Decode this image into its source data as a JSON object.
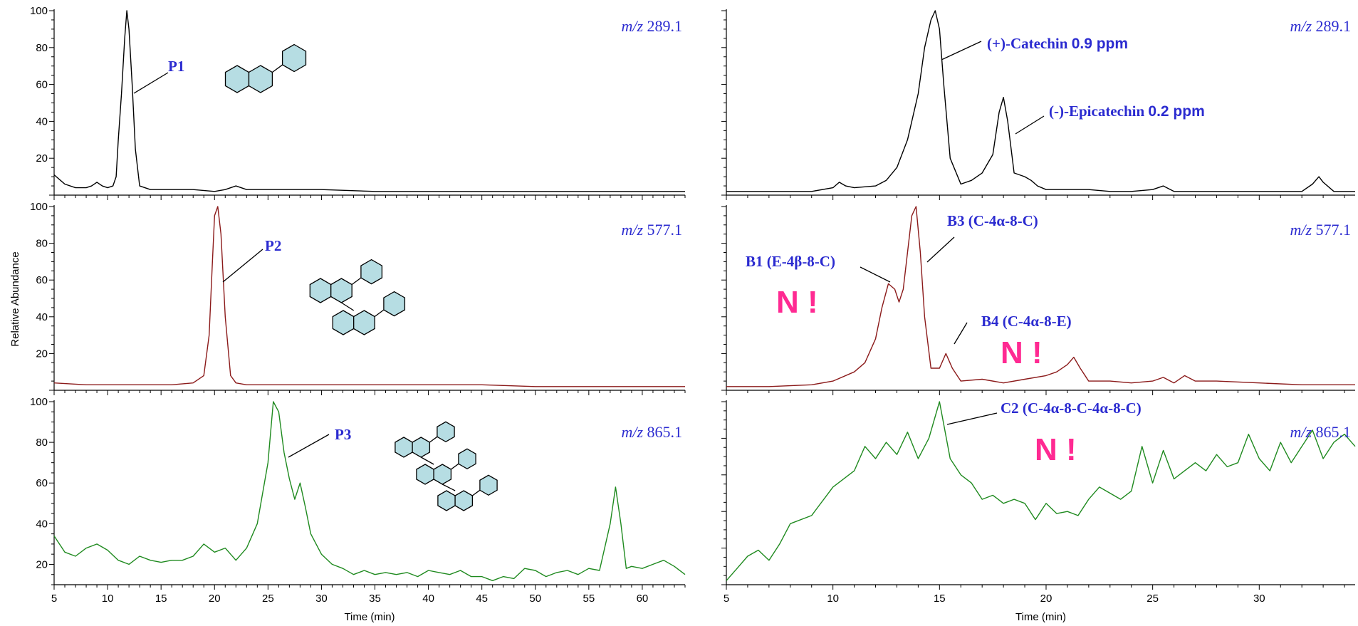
{
  "y_axis_title": "Relative Abundance",
  "colors": {
    "black_trace": "#000000",
    "red_trace": "#8b1a1a",
    "green_trace": "#1f8a1f",
    "label_blue": "#2b2bd0",
    "n_pink": "#ff2a92",
    "hex_fill": "#b6dde3"
  },
  "chart_data": [
    {
      "type": "line",
      "id": "left-289",
      "x_label": "",
      "xlim": [
        5,
        64
      ],
      "ylim": [
        0,
        100
      ],
      "y_ticks": [
        20,
        40,
        60,
        80,
        100
      ],
      "x_ticks": [],
      "mz_prefix": "m/z",
      "mz_value": "289.1",
      "color": "#000000",
      "series": [
        {
          "x": [
            5,
            6,
            7,
            8,
            8.5,
            9,
            9.5,
            10,
            10.5,
            10.8,
            11,
            11.3,
            11.6,
            11.8,
            12,
            12.3,
            12.6,
            13,
            14,
            16,
            18,
            20,
            21,
            22,
            23,
            25,
            30,
            35,
            40,
            45,
            50,
            55,
            60,
            64
          ],
          "y": [
            11,
            6,
            4,
            4,
            5,
            7,
            5,
            4,
            5,
            10,
            30,
            55,
            85,
            100,
            90,
            60,
            25,
            5,
            3,
            3,
            3,
            2,
            3,
            5,
            3,
            3,
            3,
            2,
            2,
            2,
            2,
            2,
            2,
            2
          ]
        }
      ],
      "annotations": [
        {
          "text": "P1",
          "x": 16,
          "y": 72
        }
      ]
    },
    {
      "type": "line",
      "id": "left-577",
      "x_label": "",
      "xlim": [
        5,
        64
      ],
      "ylim": [
        0,
        100
      ],
      "y_ticks": [
        20,
        40,
        60,
        80,
        100
      ],
      "x_ticks": [],
      "mz_prefix": "m/z",
      "mz_value": "577.1",
      "color": "#8b1a1a",
      "series": [
        {
          "x": [
            5,
            8,
            12,
            16,
            18,
            19,
            19.5,
            19.8,
            20,
            20.3,
            20.6,
            21,
            21.5,
            22,
            23,
            25,
            30,
            35,
            40,
            45,
            50,
            55,
            60,
            64
          ],
          "y": [
            4,
            3,
            3,
            3,
            4,
            8,
            30,
            70,
            95,
            100,
            85,
            40,
            8,
            4,
            3,
            3,
            3,
            3,
            3,
            3,
            2,
            2,
            2,
            2
          ]
        }
      ],
      "annotations": [
        {
          "text": "P2",
          "x": 23,
          "y": 73
        }
      ]
    },
    {
      "type": "line",
      "id": "left-865",
      "x_label": "Time (min)",
      "xlim": [
        5,
        64
      ],
      "ylim": [
        10,
        100
      ],
      "y_ticks": [
        20,
        40,
        60,
        80,
        100
      ],
      "x_ticks": [
        5,
        10,
        15,
        20,
        25,
        30,
        35,
        40,
        45,
        50,
        55,
        60
      ],
      "mz_prefix": "m/z",
      "mz_value": "865.1",
      "color": "#1f8a1f",
      "series": [
        {
          "x": [
            5,
            6,
            7,
            8,
            9,
            10,
            11,
            12,
            13,
            14,
            15,
            16,
            17,
            18,
            19,
            20,
            21,
            22,
            23,
            24,
            25,
            25.5,
            26,
            26.5,
            27,
            27.5,
            28,
            28.5,
            29,
            30,
            31,
            32,
            33,
            34,
            35,
            36,
            37,
            38,
            39,
            40,
            41,
            42,
            43,
            44,
            45,
            46,
            47,
            48,
            49,
            50,
            51,
            52,
            53,
            54,
            55,
            56,
            57,
            57.5,
            58,
            58.5,
            59,
            60,
            61,
            62,
            63,
            64
          ],
          "y": [
            34,
            26,
            24,
            28,
            30,
            27,
            22,
            20,
            24,
            22,
            21,
            22,
            22,
            24,
            30,
            26,
            28,
            22,
            28,
            40,
            70,
            100,
            95,
            75,
            62,
            52,
            60,
            48,
            35,
            25,
            20,
            18,
            15,
            17,
            15,
            16,
            15,
            16,
            14,
            17,
            16,
            15,
            17,
            14,
            14,
            12,
            14,
            13,
            18,
            17,
            14,
            16,
            17,
            15,
            18,
            17,
            40,
            58,
            40,
            18,
            19,
            18,
            20,
            22,
            19,
            15
          ]
        }
      ],
      "annotations": [
        {
          "text": "P3",
          "x": 31,
          "y": 88
        }
      ]
    },
    {
      "type": "line",
      "id": "right-289",
      "x_label": "",
      "xlim": [
        5,
        34.5
      ],
      "ylim": [
        0,
        100
      ],
      "y_ticks": [],
      "x_ticks": [],
      "mz_prefix": "m/z",
      "mz_value": "289.1",
      "color": "#000000",
      "series": [
        {
          "x": [
            5,
            6,
            7,
            8,
            9,
            10,
            10.3,
            10.6,
            11,
            12,
            12.5,
            13,
            13.5,
            14,
            14.3,
            14.6,
            14.8,
            15,
            15.2,
            15.5,
            16,
            16.5,
            17,
            17.5,
            17.8,
            18,
            18.2,
            18.5,
            19,
            19.3,
            19.6,
            20,
            21,
            22,
            23,
            24,
            25,
            25.5,
            26,
            27,
            28,
            29,
            30,
            31,
            32,
            32.5,
            32.8,
            33,
            33.5,
            34,
            34.5
          ],
          "y": [
            2,
            2,
            2,
            2,
            2,
            4,
            7,
            5,
            4,
            5,
            8,
            15,
            30,
            55,
            80,
            95,
            100,
            90,
            60,
            20,
            6,
            8,
            12,
            22,
            45,
            53,
            40,
            12,
            10,
            8,
            5,
            3,
            3,
            3,
            2,
            2,
            3,
            5,
            2,
            2,
            2,
            2,
            2,
            2,
            2,
            6,
            10,
            7,
            2,
            2,
            2
          ]
        }
      ],
      "annotations": [
        {
          "text": "(+)-Catechin",
          "ppm": "0.9 ppm",
          "x": 17.5,
          "y": 80
        },
        {
          "text": "(-)-Epicatechin",
          "ppm": "0.2 ppm",
          "x": 20,
          "y": 45
        }
      ]
    },
    {
      "type": "line",
      "id": "right-577",
      "x_label": "",
      "xlim": [
        5,
        34.5
      ],
      "ylim": [
        0,
        100
      ],
      "y_ticks": [],
      "x_ticks": [],
      "mz_prefix": "m/z",
      "mz_value": "577.1",
      "color": "#8b1a1a",
      "series": [
        {
          "x": [
            5,
            7,
            9,
            10,
            11,
            11.5,
            12,
            12.3,
            12.6,
            12.9,
            13.1,
            13.3,
            13.5,
            13.7,
            13.9,
            14.1,
            14.3,
            14.6,
            15,
            15.3,
            15.6,
            16,
            17,
            18,
            19,
            20,
            20.5,
            21,
            21.3,
            21.6,
            22,
            23,
            24,
            25,
            25.5,
            26,
            26.5,
            27,
            28,
            30,
            32,
            34.5
          ],
          "y": [
            2,
            2,
            3,
            5,
            10,
            15,
            28,
            45,
            58,
            55,
            48,
            55,
            75,
            95,
            100,
            75,
            40,
            12,
            12,
            20,
            12,
            5,
            6,
            4,
            6,
            8,
            10,
            14,
            18,
            12,
            5,
            5,
            4,
            5,
            7,
            4,
            8,
            5,
            5,
            4,
            3,
            3
          ]
        }
      ],
      "annotations": [
        {
          "text": "B1 (E-4β-8-C)",
          "x": 9,
          "y": 66
        },
        {
          "text": "B3 (C-4α-8-C)",
          "x": 16,
          "y": 88
        },
        {
          "text": "B4 (C-4α-8-E)",
          "x": 17.8,
          "y": 34
        }
      ],
      "n_marks": [
        "N !",
        "N !"
      ]
    },
    {
      "type": "line",
      "id": "right-865",
      "x_label": "Time (min)",
      "xlim": [
        5,
        34.5
      ],
      "ylim": [
        10,
        100
      ],
      "y_ticks": [],
      "x_ticks": [
        5,
        10,
        15,
        20,
        25,
        30
      ],
      "mz_prefix": "m/z",
      "mz_value": "865.1",
      "color": "#1f8a1f",
      "series": [
        {
          "x": [
            5,
            5.5,
            6,
            6.5,
            7,
            7.5,
            8,
            9,
            10,
            11,
            11.5,
            12,
            12.5,
            13,
            13.5,
            14,
            14.5,
            15,
            15.5,
            16,
            16.5,
            17,
            17.5,
            18,
            18.5,
            19,
            19.5,
            20,
            20.5,
            21,
            21.5,
            22,
            22.5,
            23,
            23.5,
            24,
            24.5,
            25,
            25.5,
            26,
            26.5,
            27,
            27.5,
            28,
            28.5,
            29,
            29.5,
            30,
            30.5,
            31,
            31.5,
            32,
            32.5,
            33,
            33.5,
            34,
            34.5
          ],
          "y": [
            12,
            18,
            24,
            27,
            22,
            30,
            40,
            44,
            58,
            66,
            78,
            72,
            80,
            74,
            85,
            72,
            82,
            100,
            72,
            64,
            60,
            52,
            54,
            50,
            52,
            50,
            42,
            50,
            45,
            46,
            44,
            52,
            58,
            55,
            52,
            56,
            78,
            60,
            76,
            62,
            66,
            70,
            66,
            74,
            68,
            70,
            84,
            72,
            66,
            80,
            70,
            78,
            86,
            72,
            80,
            84,
            78
          ]
        }
      ],
      "annotations": [
        {
          "text": "C2 (C-4α-8-C-4α-8-C)",
          "x": 16.5,
          "y": 92
        }
      ],
      "n_marks": [
        "N !"
      ]
    }
  ]
}
